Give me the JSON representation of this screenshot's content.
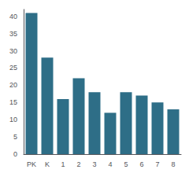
{
  "chart_data": {
    "type": "bar",
    "categories": [
      "PK",
      "K",
      "1",
      "2",
      "3",
      "4",
      "5",
      "6",
      "7",
      "8"
    ],
    "values": [
      41,
      28,
      16,
      22,
      18,
      12,
      18,
      17,
      15,
      13
    ],
    "color": "#2e6e87",
    "ylim": [
      0,
      42
    ],
    "yticks": [
      0,
      5,
      10,
      15,
      20,
      25,
      30,
      35,
      40
    ],
    "grid": false
  }
}
